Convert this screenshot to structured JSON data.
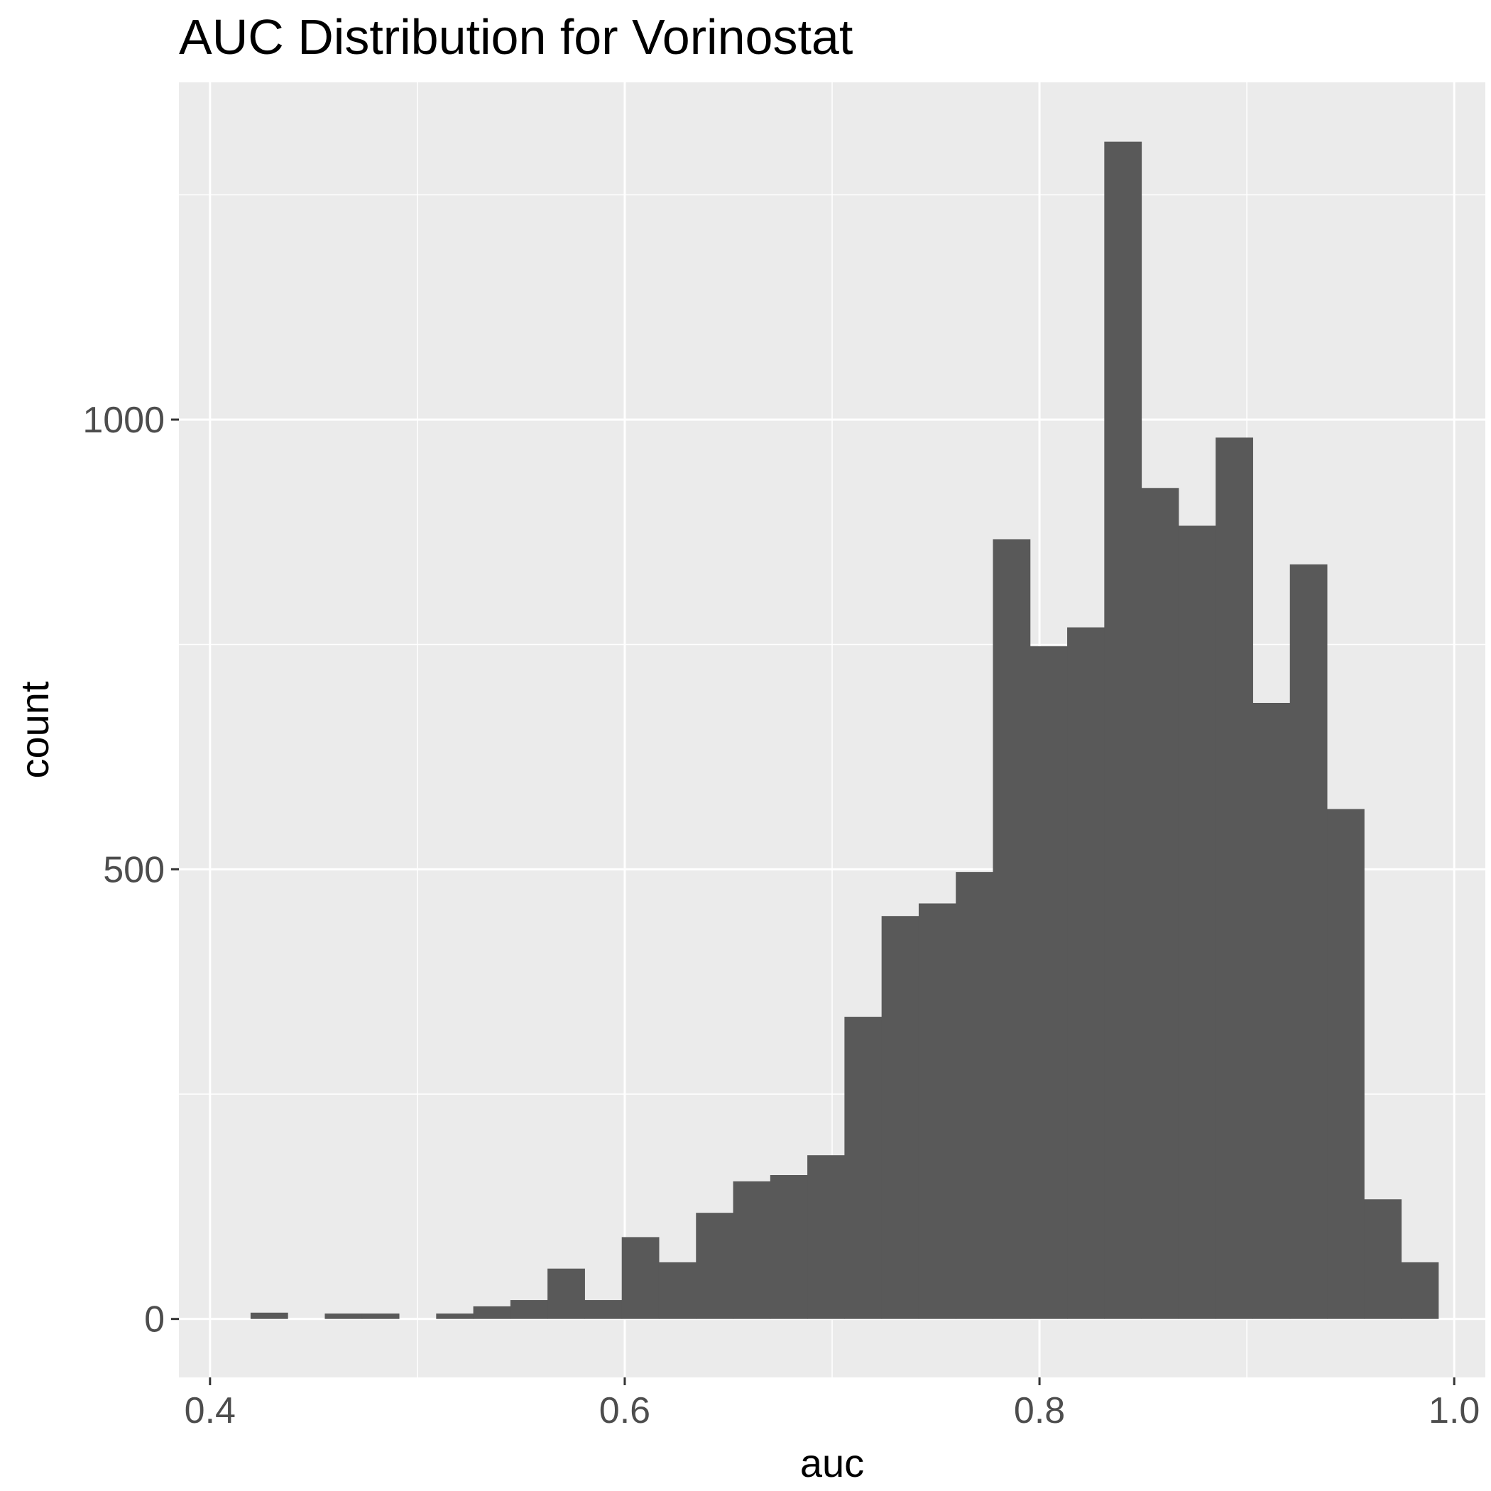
{
  "chart_data": {
    "type": "bar",
    "title": "AUC Distribution for Vorinostat",
    "xlabel": "auc",
    "ylabel": "count",
    "xlim": [
      0.385,
      1.015
    ],
    "ylim": [
      -65,
      1375
    ],
    "x_ticks": [
      0.4,
      0.6,
      0.8,
      1.0
    ],
    "x_tick_labels": [
      "0.4",
      "0.6",
      "0.8",
      "1.0"
    ],
    "y_ticks": [
      0,
      500,
      1000
    ],
    "y_tick_labels": [
      "0",
      "500",
      "1000"
    ],
    "grid": true,
    "bin_width": 0.0179,
    "bins": [
      {
        "x": 0.4285,
        "count": 7
      },
      {
        "x": 0.4643,
        "count": 6
      },
      {
        "x": 0.4822,
        "count": 6
      },
      {
        "x": 0.518,
        "count": 6
      },
      {
        "x": 0.5359,
        "count": 14
      },
      {
        "x": 0.5538,
        "count": 21
      },
      {
        "x": 0.5717,
        "count": 56
      },
      {
        "x": 0.5896,
        "count": 21
      },
      {
        "x": 0.6075,
        "count": 91
      },
      {
        "x": 0.6254,
        "count": 63
      },
      {
        "x": 0.6433,
        "count": 118
      },
      {
        "x": 0.6612,
        "count": 153
      },
      {
        "x": 0.6791,
        "count": 160
      },
      {
        "x": 0.697,
        "count": 182
      },
      {
        "x": 0.7149,
        "count": 336
      },
      {
        "x": 0.7328,
        "count": 448
      },
      {
        "x": 0.7507,
        "count": 462
      },
      {
        "x": 0.7686,
        "count": 497
      },
      {
        "x": 0.7865,
        "count": 867
      },
      {
        "x": 0.8044,
        "count": 748
      },
      {
        "x": 0.8223,
        "count": 769
      },
      {
        "x": 0.8402,
        "count": 1309
      },
      {
        "x": 0.8581,
        "count": 924
      },
      {
        "x": 0.876,
        "count": 882
      },
      {
        "x": 0.8939,
        "count": 980
      },
      {
        "x": 0.9118,
        "count": 685
      },
      {
        "x": 0.9297,
        "count": 839
      },
      {
        "x": 0.9476,
        "count": 567
      },
      {
        "x": 0.9655,
        "count": 133
      },
      {
        "x": 0.9834,
        "count": 63
      }
    ],
    "colors": {
      "panel": "#ebebeb",
      "grid_major": "#ffffff",
      "bar": "#595959",
      "tick": "#333333"
    }
  }
}
